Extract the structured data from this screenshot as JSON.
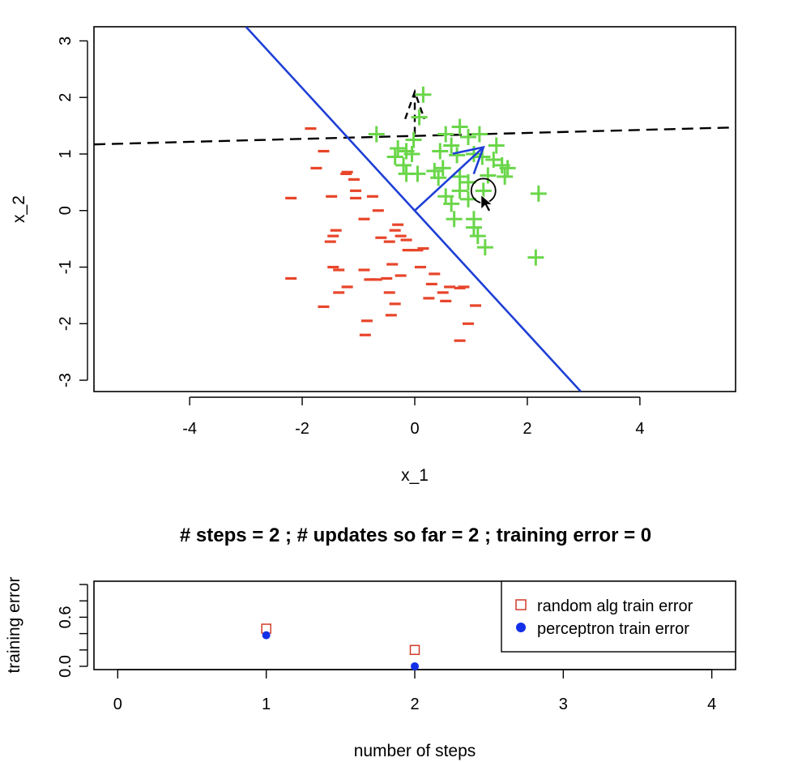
{
  "main_title": "# steps =  2 ; # updates so far =  2 ; training error =  0",
  "colors": {
    "negative": "#e8452a",
    "positive": "#6ad64a",
    "boundary": "#1e3fd6",
    "random": "#d23a2a",
    "perceptron": "#1330e8",
    "axis": "#000000"
  },
  "chart_data": [
    {
      "type": "scatter",
      "title": "",
      "xlabel": "x_1",
      "ylabel": "x_2",
      "xlim": [
        -5.7,
        5.7
      ],
      "ylim": [
        -3.2,
        3.25
      ],
      "xticks": [
        -4,
        -2,
        0,
        2,
        4
      ],
      "yticks": [
        -3,
        -2,
        -1,
        0,
        1,
        2,
        3
      ],
      "grid": false,
      "series": [
        {
          "marker": "minus",
          "points": [
            [
              -1.85,
              1.45
            ],
            [
              -1.62,
              1.05
            ],
            [
              -1.75,
              0.75
            ],
            [
              -1.2,
              0.68
            ],
            [
              -1.22,
              0.65
            ],
            [
              -1.08,
              0.55
            ],
            [
              -1.05,
              0.35
            ],
            [
              -2.2,
              0.22
            ],
            [
              -1.48,
              0.25
            ],
            [
              -1.05,
              0.22
            ],
            [
              -0.75,
              0.25
            ],
            [
              -0.65,
              0.0
            ],
            [
              -0.9,
              -0.15
            ],
            [
              -1.4,
              -0.35
            ],
            [
              -1.45,
              -0.45
            ],
            [
              -1.5,
              -0.55
            ],
            [
              -0.3,
              -0.25
            ],
            [
              -0.35,
              -0.35
            ],
            [
              -0.25,
              -0.45
            ],
            [
              -0.6,
              -0.48
            ],
            [
              -0.45,
              -0.55
            ],
            [
              -0.15,
              -0.52
            ],
            [
              -0.12,
              -0.7
            ],
            [
              0.05,
              -0.7
            ],
            [
              0.15,
              -0.67
            ],
            [
              -1.45,
              -1.0
            ],
            [
              -1.35,
              -1.05
            ],
            [
              -0.9,
              -1.05
            ],
            [
              -0.8,
              -1.22
            ],
            [
              -0.68,
              -1.22
            ],
            [
              -0.5,
              -1.2
            ],
            [
              -0.4,
              -0.95
            ],
            [
              -0.25,
              -1.15
            ],
            [
              0.1,
              -1.0
            ],
            [
              0.35,
              -1.12
            ],
            [
              0.3,
              -1.3
            ],
            [
              -2.2,
              -1.2
            ],
            [
              -1.2,
              -1.35
            ],
            [
              -1.35,
              -1.45
            ],
            [
              -0.45,
              -1.45
            ],
            [
              -0.35,
              -1.65
            ],
            [
              -1.62,
              -1.7
            ],
            [
              -0.42,
              -1.85
            ],
            [
              -0.85,
              -1.95
            ],
            [
              -0.88,
              -2.2
            ],
            [
              0.5,
              -1.45
            ],
            [
              0.62,
              -1.35
            ],
            [
              0.8,
              -1.37
            ],
            [
              0.87,
              -1.35
            ],
            [
              0.25,
              -1.55
            ],
            [
              0.55,
              -1.6
            ],
            [
              1.08,
              -1.68
            ],
            [
              0.95,
              -2.0
            ],
            [
              0.8,
              -2.3
            ]
          ]
        },
        {
          "marker": "plus",
          "points": [
            [
              0.15,
              2.05
            ],
            [
              0.08,
              1.65
            ],
            [
              -0.68,
              1.35
            ],
            [
              -0.02,
              1.25
            ],
            [
              0.55,
              1.35
            ],
            [
              0.8,
              1.48
            ],
            [
              1.15,
              1.35
            ],
            [
              0.95,
              1.3
            ],
            [
              0.65,
              1.15
            ],
            [
              1.45,
              1.15
            ],
            [
              -0.3,
              1.1
            ],
            [
              -0.15,
              1.05
            ],
            [
              -0.35,
              0.95
            ],
            [
              -0.05,
              1.0
            ],
            [
              0.45,
              1.05
            ],
            [
              0.75,
              0.98
            ],
            [
              1.05,
              1.0
            ],
            [
              1.2,
              0.95
            ],
            [
              1.4,
              0.9
            ],
            [
              1.55,
              0.8
            ],
            [
              -0.2,
              0.8
            ],
            [
              -0.15,
              0.65
            ],
            [
              0.05,
              0.65
            ],
            [
              0.35,
              0.7
            ],
            [
              0.42,
              0.58
            ],
            [
              0.5,
              0.75
            ],
            [
              0.8,
              0.6
            ],
            [
              0.95,
              0.5
            ],
            [
              1.3,
              0.62
            ],
            [
              1.6,
              0.6
            ],
            [
              1.65,
              0.75
            ],
            [
              1.22,
              0.35
            ],
            [
              0.55,
              0.25
            ],
            [
              0.65,
              0.12
            ],
            [
              0.8,
              0.35
            ],
            [
              0.95,
              0.2
            ],
            [
              1.05,
              -0.15
            ],
            [
              0.7,
              -0.15
            ],
            [
              1.05,
              -0.3
            ],
            [
              1.12,
              -0.45
            ],
            [
              1.25,
              -0.65
            ],
            [
              2.2,
              0.3
            ],
            [
              2.15,
              -0.83
            ]
          ]
        }
      ]
    },
    {
      "type": "scatter",
      "title": "",
      "xlabel": "number of steps",
      "ylabel": "training error",
      "xlim": [
        -0.16,
        4.16
      ],
      "ylim": [
        -0.04,
        1.04
      ],
      "xticks": [
        0,
        1,
        2,
        3,
        4
      ],
      "yticks": [
        0.0,
        0.2,
        0.4,
        0.6,
        0.8,
        1.0
      ],
      "ytick_labels": [
        "0.0",
        "",
        "",
        "0.6",
        "",
        ""
      ],
      "legend_position": "top-right",
      "series": [
        {
          "name": "random alg train error",
          "marker": "open-square",
          "x": [
            1,
            2
          ],
          "y": [
            0.46,
            0.2
          ]
        },
        {
          "name": "perceptron train error",
          "marker": "filled-circle",
          "x": [
            1,
            2
          ],
          "y": [
            0.38,
            0.0
          ]
        }
      ]
    }
  ]
}
